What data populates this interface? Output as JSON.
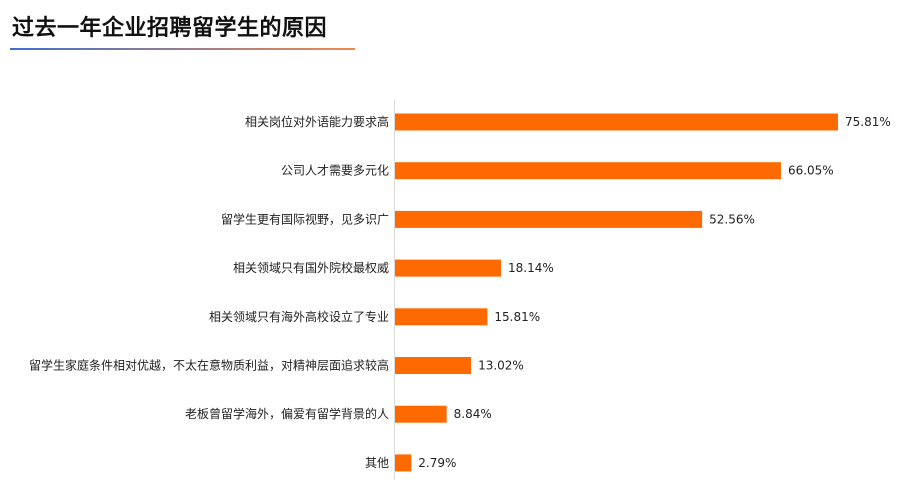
{
  "page": {
    "title": "过去一年企业招聘留学生的原因"
  },
  "colors": {
    "bar": "#ff6a00",
    "title_rule_start": "#3f6fd1",
    "title_rule_end": "#f08a4b"
  },
  "chart_data": {
    "type": "bar",
    "orientation": "horizontal",
    "title": "过去一年企业招聘留学生的原因",
    "categories": [
      "相关岗位对外语能力要求高",
      "公司人才需要多元化",
      "留学生更有国际视野，见多识广",
      "相关领域只有国外院校最权威",
      "相关领域只有海外高校设立了专业",
      "留学生家庭条件相对优越，不太在意物质利益，对精神层面追求较高",
      "老板曾留学海外，偏爱有留学背景的人",
      "其他"
    ],
    "values": [
      75.81,
      66.05,
      52.56,
      18.14,
      15.81,
      13.02,
      8.84,
      2.79
    ],
    "value_labels": [
      "75.81%",
      "66.05%",
      "52.56%",
      "18.14%",
      "15.81%",
      "13.02%",
      "8.84%",
      "2.79%"
    ],
    "unit": "%",
    "xlim": [
      0,
      75.81
    ],
    "grid": false,
    "legend": "none"
  }
}
